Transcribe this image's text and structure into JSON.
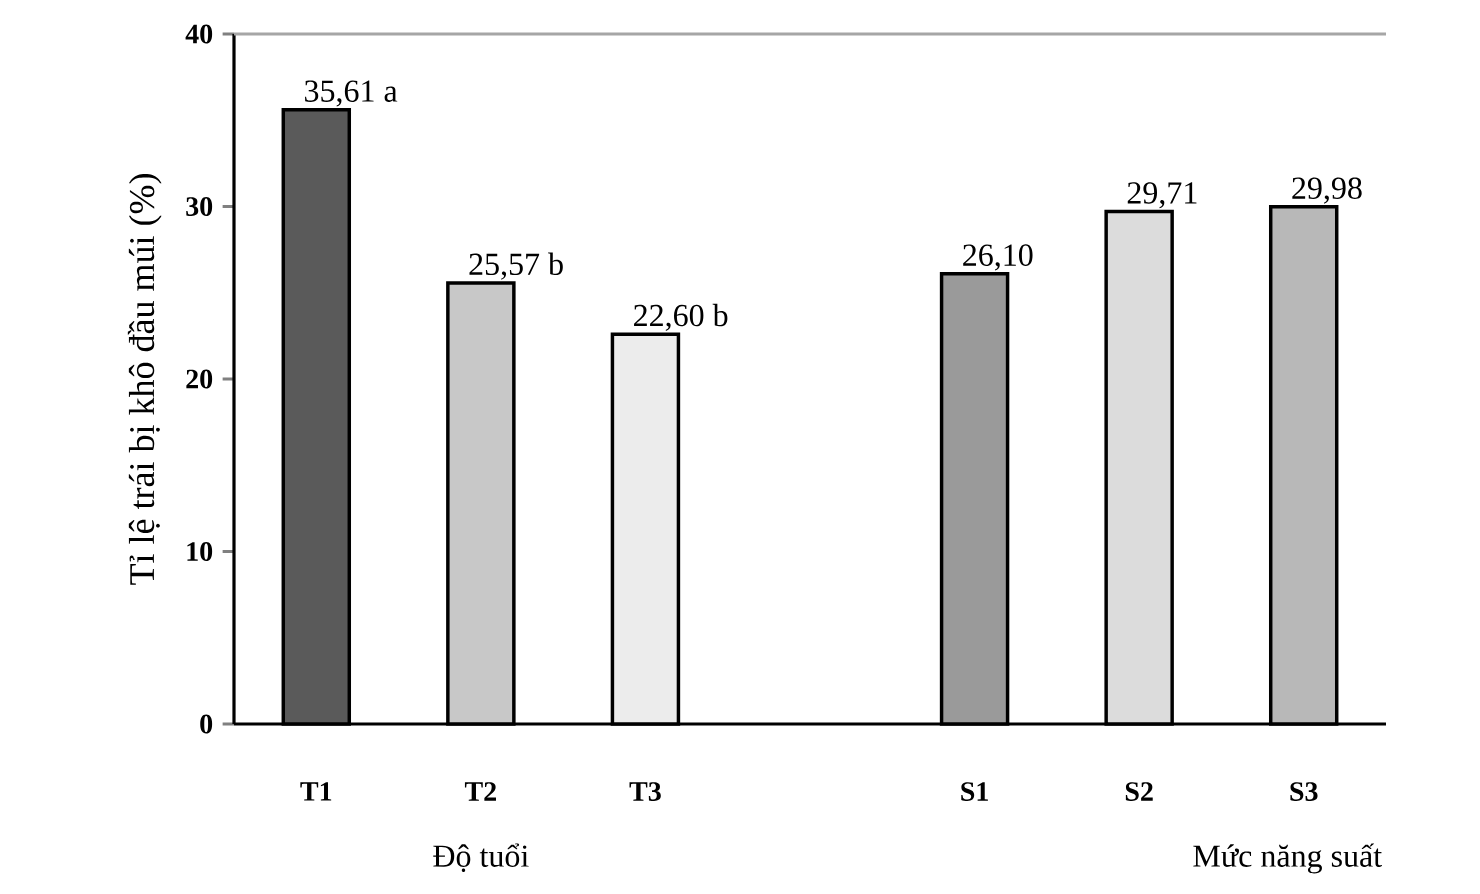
{
  "chart_data": {
    "type": "bar",
    "ylabel": "Tỉ lệ trái bị khô đầu múi (%)",
    "categories": [
      "T1",
      "T2",
      "T3",
      null,
      "S1",
      "S2",
      "S3"
    ],
    "values": [
      35.61,
      25.57,
      22.6,
      null,
      26.1,
      29.71,
      29.98
    ],
    "colors": [
      "#5a5a5a",
      "#c8c8c8",
      "#ececec",
      "#ffffff",
      "#9a9a9a",
      "#dcdcdc",
      "#b8b8b8"
    ],
    "value_labels": [
      "35,61 a",
      "25,57 b",
      "22,60 b",
      null,
      "26,10",
      "29,71",
      "29,98"
    ],
    "ylim": [
      0,
      40
    ],
    "yticks": [
      0,
      10,
      20,
      30,
      40
    ],
    "annotations": [
      "Độ tuổi",
      "Mức năng suất"
    ]
  }
}
